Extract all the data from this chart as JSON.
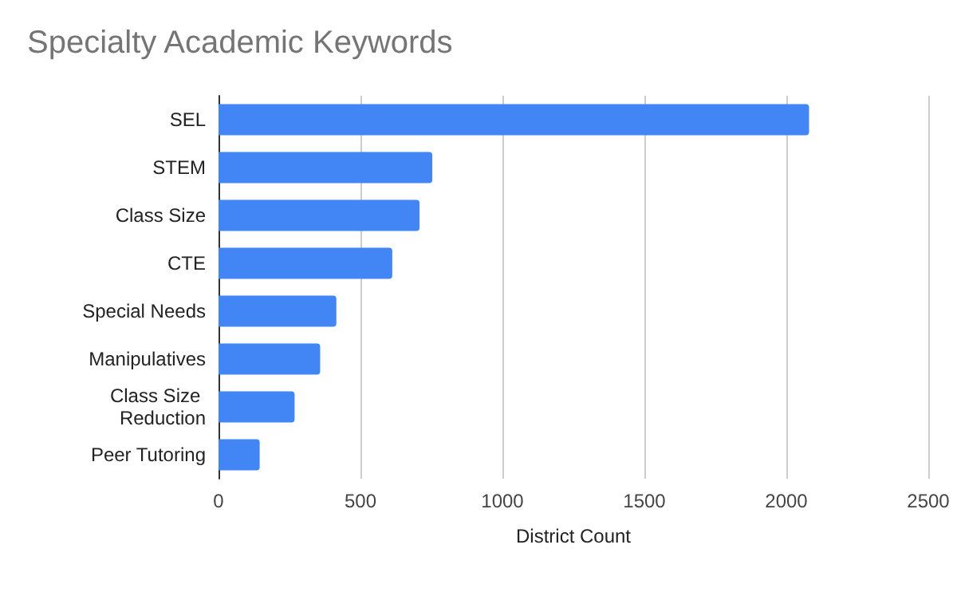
{
  "chart_data": {
    "type": "bar",
    "orientation": "horizontal",
    "title": "Specialty Academic Keywords",
    "xlabel": "District Count",
    "categories": [
      "SEL",
      "STEM",
      "Class Size",
      "CTE",
      "Special Needs",
      "Manipulatives",
      "Class Size Reduction",
      "Peer Tutoring"
    ],
    "values": [
      2080,
      753,
      708,
      612,
      415,
      358,
      268,
      145
    ],
    "color": "#4285f4",
    "xlim": [
      0,
      2500
    ],
    "xticks": [
      0,
      500,
      1000,
      1500,
      2000,
      2500
    ],
    "grid": "x"
  }
}
